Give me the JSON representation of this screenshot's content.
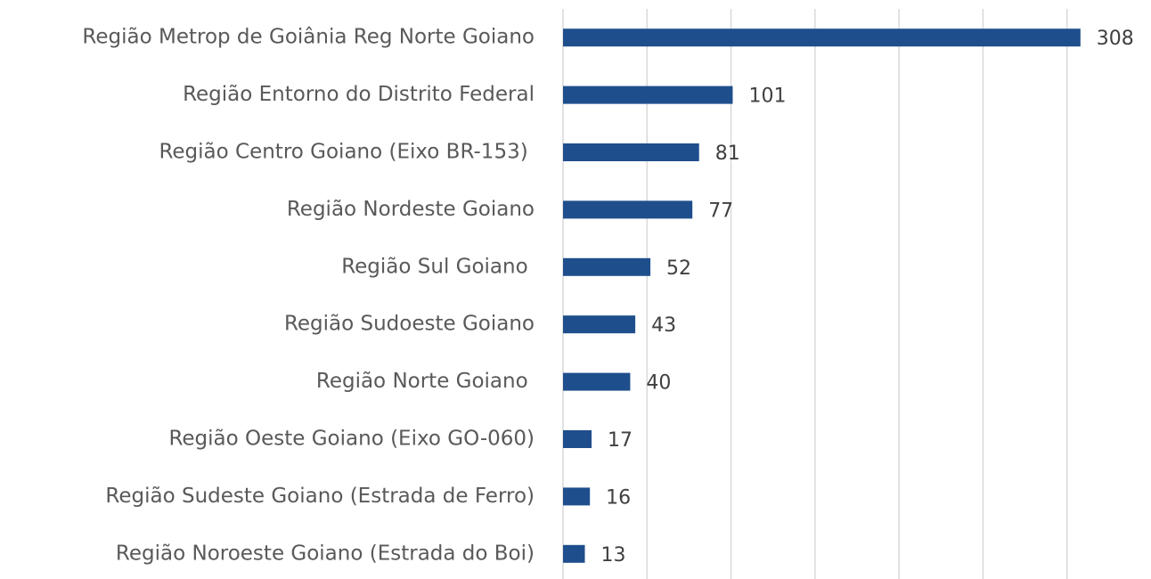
{
  "chart_data": {
    "type": "bar",
    "orientation": "horizontal",
    "categories": [
      "Região Metrop de Goiânia Reg Norte Goiano",
      "Região Entorno do Distrito Federal",
      "Região Centro Goiano (Eixo BR-153) ",
      "Região Nordeste Goiano",
      "Região Sul Goiano ",
      "Região Sudoeste Goiano",
      "Região Norte Goiano ",
      "Região Oeste Goiano (Eixo GO-060)",
      "Região Sudeste Goiano (Estrada de Ferro)",
      "Região Noroeste Goiano (Estrada do Boi)"
    ],
    "values": [
      308,
      101,
      81,
      77,
      52,
      43,
      40,
      17,
      16,
      13
    ],
    "color": "#1f4e8c",
    "xlim": [
      0,
      350
    ],
    "xticks": [
      0,
      50,
      100,
      150,
      200,
      250,
      300
    ],
    "grid": true
  }
}
